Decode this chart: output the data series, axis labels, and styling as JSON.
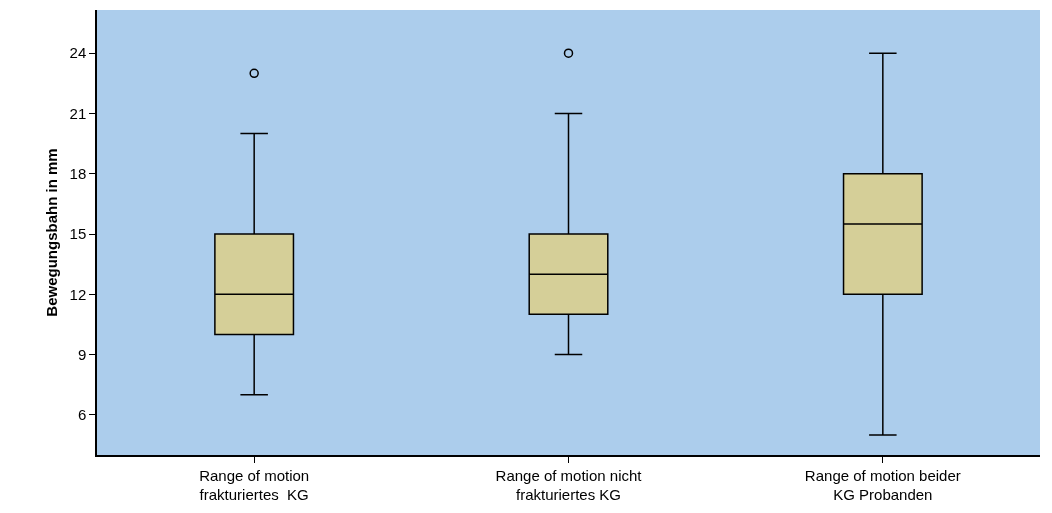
{
  "chart_data": {
    "type": "box",
    "ylabel": "Bewegungsbahn in mm",
    "categories": [
      "Range of motion\nfrakturiertes  KG",
      "Range of motion nicht\nfrakturiertes KG",
      "Range of motion beider\nKG Probanden"
    ],
    "boxes": [
      {
        "low": 7,
        "q1": 10,
        "median": 12,
        "q3": 15,
        "high": 20,
        "outliers": [
          23
        ]
      },
      {
        "low": 9,
        "q1": 11,
        "median": 13,
        "q3": 15,
        "high": 21,
        "outliers": [
          24
        ]
      },
      {
        "low": 5,
        "q1": 12,
        "median": 15.5,
        "q3": 18,
        "high": 24
      }
    ],
    "color": "#d5cf98",
    "ylim": [
      4,
      26.15
    ],
    "yticks": [
      6,
      9,
      12,
      15,
      18,
      21,
      24
    ],
    "grid": false,
    "marker": "circle"
  }
}
